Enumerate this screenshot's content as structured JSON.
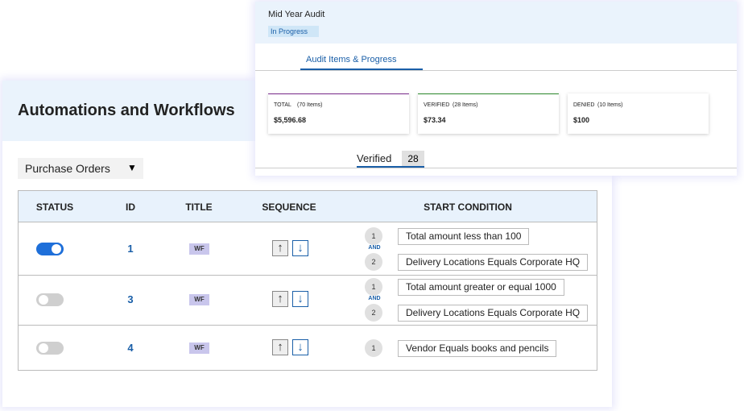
{
  "main": {
    "title": "Automations and Workflows",
    "dropdown": "Purchase Orders",
    "table": {
      "headers": [
        "STATUS",
        "ID",
        "TITLE",
        "SEQUENCE",
        "START CONDITION"
      ],
      "rows": [
        {
          "enabled": true,
          "id": 1,
          "title": "WF",
          "connector": "AND",
          "conditions": [
            {
              "step": 1,
              "text": "Total amount less than 100"
            },
            {
              "step": 2,
              "text": "Delivery Locations Equals Corporate HQ"
            }
          ]
        },
        {
          "enabled": false,
          "id": 3,
          "title": "WF",
          "connector": "AND",
          "conditions": [
            {
              "step": 1,
              "text": "Total amount greater or equal 1000"
            },
            {
              "step": 2,
              "text": "Delivery Locations Equals Corporate HQ"
            }
          ]
        },
        {
          "enabled": false,
          "id": 4,
          "title": "WF",
          "conditions": [
            {
              "step": 1,
              "text": "Vendor Equals books and pencils"
            }
          ]
        }
      ]
    }
  },
  "audit": {
    "title": "Mid Year Audit",
    "status": "In Progress",
    "tab": "Audit Items & Progress",
    "cards": [
      {
        "label": "TOTAL",
        "count": "(70 Items)",
        "amount": "$5,596.68",
        "color": "#7b2d8e"
      },
      {
        "label": "VERIFIED",
        "count": "(28 Items)",
        "amount": "$73.34",
        "color": "#2e8b2e"
      },
      {
        "label": "DENIED",
        "count": "(10 Items)",
        "amount": "$100",
        "color": "#ffffff"
      }
    ],
    "subtab": {
      "label": "Verified",
      "count": 28
    }
  }
}
